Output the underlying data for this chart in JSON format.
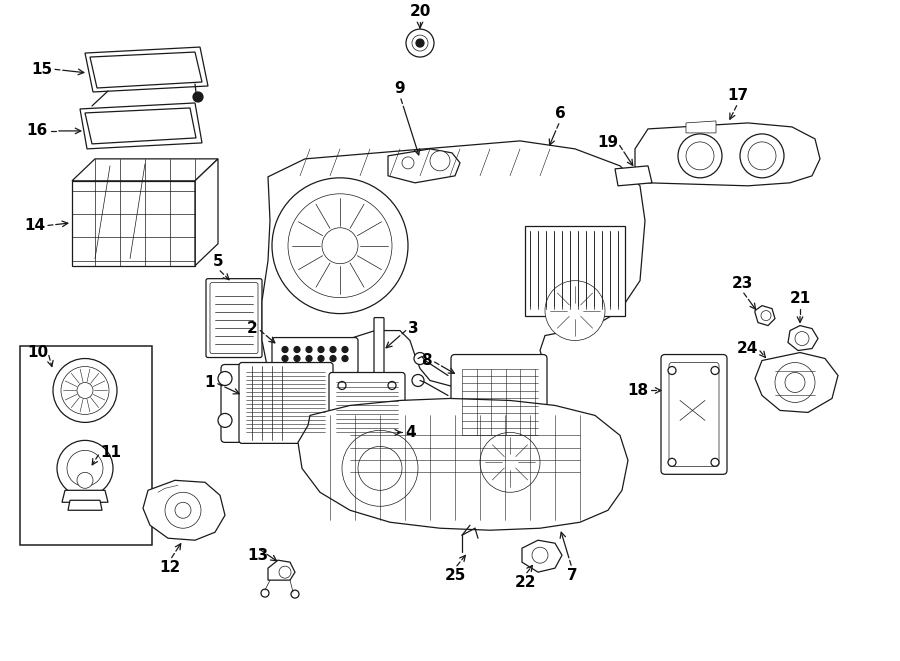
{
  "bg_color": "#ffffff",
  "line_color": "#1a1a1a",
  "text_color": "#000000",
  "fig_width": 9.0,
  "fig_height": 6.61,
  "dpi": 100,
  "lw": 0.9,
  "font_size": 11
}
